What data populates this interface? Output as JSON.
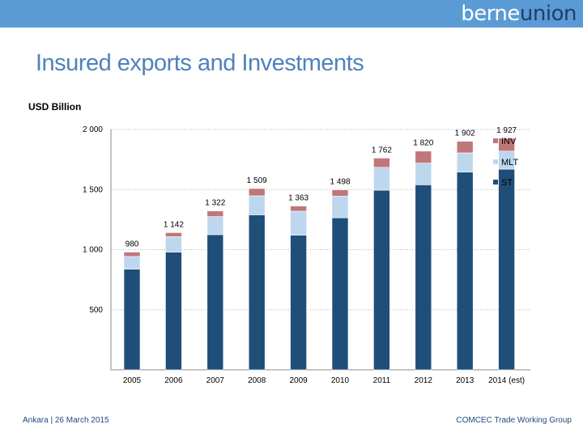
{
  "header": {
    "logo_light": "berne",
    "logo_dark": "union"
  },
  "title": "Insured exports and Investments",
  "unit": "USD Billion",
  "footer": {
    "left": "Ankara | 26 March 2015",
    "right": "COMCEC Trade Working Group"
  },
  "colors": {
    "ST": "#1f4e79",
    "MLT": "#bdd7ee",
    "INV": "#c0777a",
    "header_bar": "#5b9bd5",
    "title": "#4f81bd",
    "footer": "#1f497d"
  },
  "chart_data": {
    "type": "bar",
    "stacked": true,
    "categories": [
      "2005",
      "2006",
      "2007",
      "2008",
      "2009",
      "2010",
      "2011",
      "2012",
      "2013",
      "2014 (est)"
    ],
    "series": [
      {
        "name": "ST",
        "values": [
          838,
          980,
          1125,
          1290,
          1120,
          1265,
          1495,
          1540,
          1645,
          1670
        ]
      },
      {
        "name": "MLT",
        "values": [
          105,
          128,
          150,
          158,
          200,
          180,
          190,
          180,
          160,
          150
        ]
      },
      {
        "name": "INV",
        "values": [
          37,
          34,
          47,
          61,
          43,
          53,
          77,
          100,
          97,
          107
        ]
      }
    ],
    "totals": [
      980,
      1142,
      1322,
      1509,
      1363,
      1498,
      1762,
      1820,
      1902,
      1927
    ],
    "total_labels": [
      "980",
      "1 142",
      "1 322",
      "1 509",
      "1 363",
      "1 498",
      "1 762",
      "1 820",
      "1 902",
      "1 927"
    ],
    "yticks": [
      500,
      1000,
      1500,
      2000
    ],
    "ytick_labels": [
      "500",
      "1 000",
      "1 500",
      "2 000"
    ],
    "ylim": [
      0,
      2000
    ],
    "grid": true,
    "legend": {
      "position": "right",
      "order": [
        "INV",
        "MLT",
        "ST"
      ]
    },
    "xlabel": "",
    "ylabel": ""
  }
}
